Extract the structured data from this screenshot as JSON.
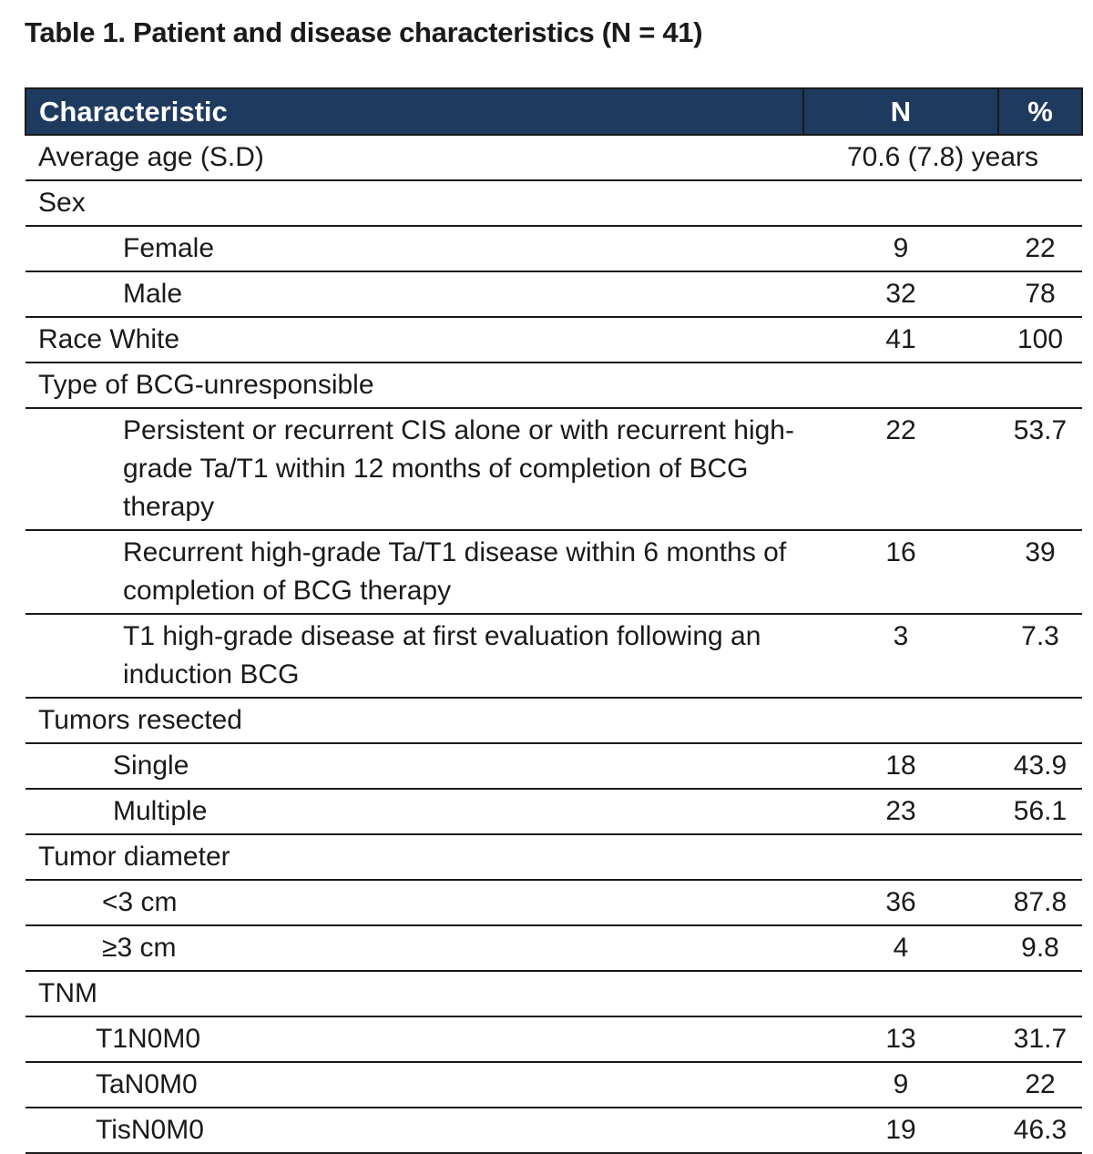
{
  "title": "Table 1. Patient and disease characteristics (N = 41)",
  "header": {
    "characteristic": "Characteristic",
    "n": "N",
    "percent": "%"
  },
  "rows": [
    {
      "label": "Average age (S.D)",
      "value": "70.6 (7.8) years"
    },
    {
      "label": "Sex",
      "n": "",
      "pct": ""
    },
    {
      "label": "Female",
      "n": "9",
      "pct": "22"
    },
    {
      "label": "Male",
      "n": "32",
      "pct": "78"
    },
    {
      "label": "Race White",
      "n": "41",
      "pct": "100"
    },
    {
      "label": "Type of BCG-unresponsible",
      "n": "",
      "pct": ""
    },
    {
      "label": "Persistent or recurrent CIS alone or with recurrent high-grade Ta/T1 within 12 months of completion of BCG therapy",
      "n": "22",
      "pct": "53.7"
    },
    {
      "label": "Recurrent high-grade Ta/T1 disease within 6 months of completion of BCG therapy",
      "n": "16",
      "pct": "39"
    },
    {
      "label": "T1 high-grade disease at first evaluation following an induction BCG",
      "n": "3",
      "pct": "7.3"
    },
    {
      "label": "Tumors resected",
      "n": "",
      "pct": ""
    },
    {
      "label": "Single",
      "n": "18",
      "pct": "43.9"
    },
    {
      "label": "Multiple",
      "n": "23",
      "pct": "56.1"
    },
    {
      "label": "Tumor diameter",
      "n": "",
      "pct": ""
    },
    {
      "label": "<3 cm",
      "n": "36",
      "pct": "87.8"
    },
    {
      "label": "≥3 cm",
      "n": "4",
      "pct": "9.8"
    },
    {
      "label": "TNM",
      "n": "",
      "pct": ""
    },
    {
      "label": "T1N0M0",
      "n": "13",
      "pct": "31.7"
    },
    {
      "label": "TaN0M0",
      "n": "9",
      "pct": "22"
    },
    {
      "label": "TisN0M0",
      "n": "19",
      "pct": "46.3"
    }
  ]
}
